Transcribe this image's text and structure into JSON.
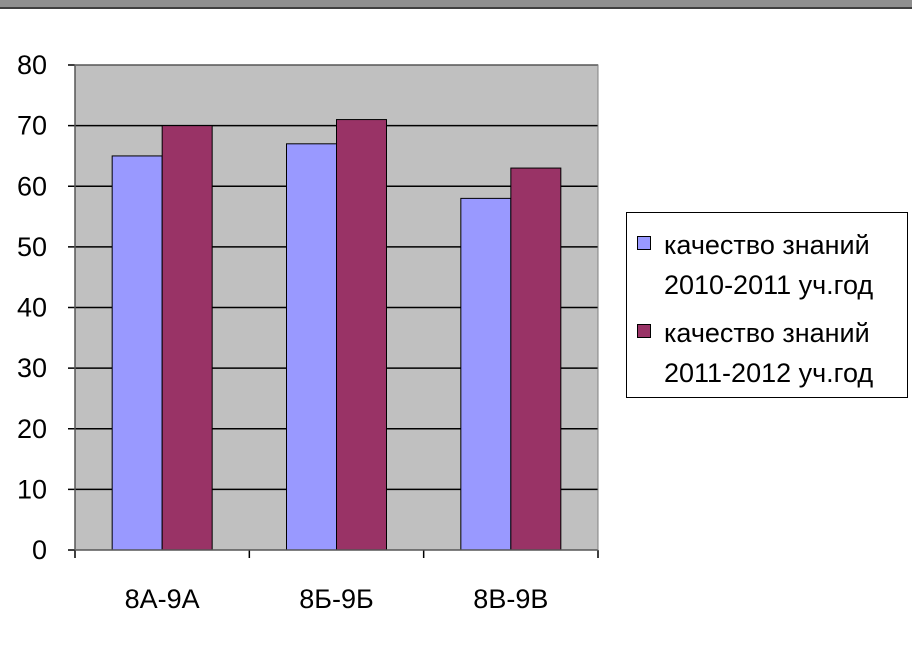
{
  "chart_data": {
    "type": "bar",
    "categories": [
      "8А-9А",
      "8Б-9Б",
      "8В-9В"
    ],
    "series": [
      {
        "name": "качество знаний 2010-2011 уч.год",
        "values": [
          65,
          67,
          58
        ],
        "color": "#9999ff"
      },
      {
        "name": "качество знаний 2011-2012 уч.год",
        "values": [
          70,
          71,
          63
        ],
        "color": "#993366"
      }
    ],
    "ylim": [
      0,
      80
    ],
    "yticks": [
      "0",
      "10",
      "20",
      "30",
      "40",
      "50",
      "60",
      "70",
      "80"
    ],
    "title": "",
    "xlabel": "",
    "ylabel": "",
    "grid": true,
    "plot_background": "#c0c0c0",
    "legend_position": "right"
  },
  "legend": {
    "items": [
      {
        "label": "качество знаний\n2010-2011 уч.год",
        "color": "#9999ff"
      },
      {
        "label": "качество знаний\n2011-2012 уч.год",
        "color": "#993366"
      }
    ]
  }
}
